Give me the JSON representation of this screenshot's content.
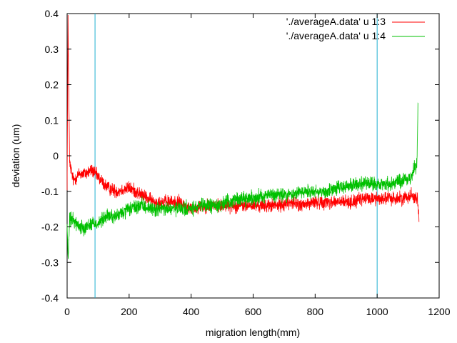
{
  "chart_data": {
    "type": "line",
    "title": "",
    "xlabel": "migration length(mm)",
    "ylabel": "deviation (um)",
    "xlim": [
      0,
      1200
    ],
    "ylim": [
      -0.4,
      0.4
    ],
    "xticks": [
      0,
      200,
      400,
      600,
      800,
      1000,
      1200
    ],
    "yticks": [
      -0.4,
      -0.3,
      -0.2,
      -0.1,
      0,
      0.1,
      0.2,
      0.3,
      0.4
    ],
    "xtick_labels": [
      "0",
      "200",
      "400",
      "600",
      "800",
      "1000",
      "1200"
    ],
    "ytick_labels": [
      "-0.4",
      "-0.3",
      "-0.2",
      "-0.1",
      "0",
      "0.1",
      "0.2",
      "0.3",
      "0.4"
    ],
    "grid": false,
    "legend_position": "top-right",
    "series": [
      {
        "name": "'./averageA.data' u 1:3",
        "color": "#ff0000",
        "x": [
          0,
          3,
          8,
          20,
          40,
          60,
          80,
          100,
          130,
          160,
          200,
          240,
          280,
          320,
          360,
          400,
          440,
          480,
          520,
          560,
          600,
          640,
          680,
          720,
          760,
          800,
          840,
          880,
          920,
          960,
          1000,
          1040,
          1080,
          1110,
          1130,
          1135
        ],
        "y": [
          -0.08,
          0.38,
          -0.02,
          -0.07,
          -0.05,
          -0.05,
          -0.04,
          -0.06,
          -0.09,
          -0.1,
          -0.09,
          -0.11,
          -0.13,
          -0.13,
          -0.13,
          -0.15,
          -0.14,
          -0.14,
          -0.14,
          -0.14,
          -0.14,
          -0.14,
          -0.14,
          -0.13,
          -0.14,
          -0.13,
          -0.13,
          -0.13,
          -0.13,
          -0.12,
          -0.12,
          -0.12,
          -0.12,
          -0.11,
          -0.12,
          -0.18
        ],
        "noise": 0.028
      },
      {
        "name": "'./averageA.data' u 1:4",
        "color": "#00c000",
        "x": [
          0,
          3,
          8,
          20,
          40,
          60,
          80,
          100,
          130,
          160,
          200,
          240,
          280,
          320,
          360,
          400,
          440,
          480,
          520,
          560,
          600,
          640,
          680,
          720,
          760,
          800,
          840,
          880,
          920,
          960,
          1000,
          1040,
          1080,
          1110,
          1128,
          1132
        ],
        "y": [
          -0.19,
          -0.3,
          -0.18,
          -0.18,
          -0.2,
          -0.2,
          -0.19,
          -0.19,
          -0.17,
          -0.17,
          -0.15,
          -0.14,
          -0.15,
          -0.15,
          -0.15,
          -0.15,
          -0.14,
          -0.14,
          -0.13,
          -0.12,
          -0.12,
          -0.11,
          -0.11,
          -0.11,
          -0.1,
          -0.1,
          -0.1,
          -0.09,
          -0.08,
          -0.08,
          -0.08,
          -0.08,
          -0.07,
          -0.06,
          -0.02,
          0.15
        ],
        "noise": 0.03
      }
    ],
    "vertical_lines": [
      {
        "x": 90,
        "color": "#20b0d0"
      },
      {
        "x": 1000,
        "color": "#20b0d0"
      }
    ]
  }
}
